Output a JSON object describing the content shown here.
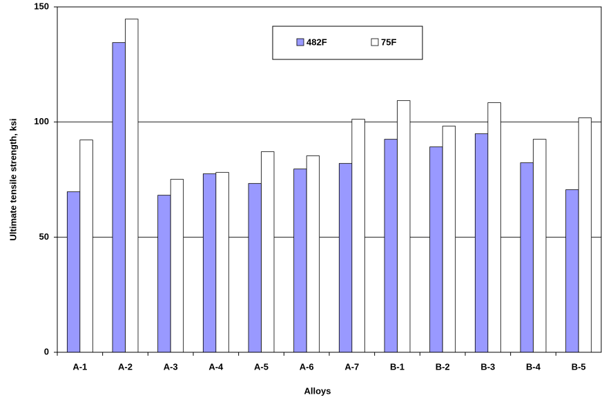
{
  "chart_data": {
    "type": "bar",
    "x_label": "Alloys",
    "y_label": "Ultimate tensile strength, ksi",
    "categories": [
      "A-1",
      "A-2",
      "A-3",
      "A-4",
      "A-5",
      "A-6",
      "A-7",
      "B-1",
      "B-2",
      "B-3",
      "B-4",
      "B-5"
    ],
    "series": [
      {
        "name": "482F",
        "color": "#9999ff",
        "values": [
          69.7,
          134.5,
          68.2,
          77.5,
          73.3,
          79.6,
          82,
          92.5,
          89.2,
          94.9,
          82.3,
          70.6
        ]
      },
      {
        "name": "75F",
        "color": "#ffffff",
        "values": [
          92.2,
          144.7,
          75.1,
          78.1,
          87.1,
          85.3,
          101.2,
          109.3,
          98.2,
          108.4,
          92.5,
          101.8
        ]
      }
    ],
    "ylim": [
      0,
      150
    ],
    "yticks": [
      0,
      50,
      100,
      150
    ],
    "grid": true,
    "legend": "top"
  }
}
